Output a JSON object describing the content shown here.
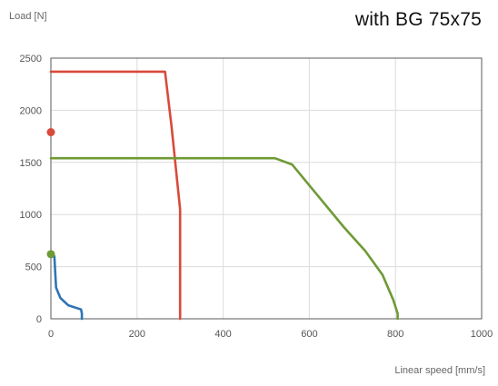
{
  "header": {
    "title": "with BG 75x75"
  },
  "chart_data": {
    "type": "line",
    "title": "with BG 75x75",
    "xlabel": "Linear speed [mm/s]",
    "ylabel": "Load [N]",
    "xlim": [
      0,
      1000
    ],
    "ylim": [
      0,
      2500
    ],
    "x_ticks": [
      0,
      200,
      400,
      600,
      800,
      1000
    ],
    "y_ticks": [
      0,
      500,
      1000,
      1500,
      2000,
      2500
    ],
    "grid": true,
    "series": [
      {
        "color": "#d94a3a",
        "points": [
          [
            0,
            2370
          ],
          [
            265,
            2370
          ],
          [
            280,
            1850
          ],
          [
            300,
            1050
          ],
          [
            300,
            0
          ]
        ],
        "marker": [
          0,
          1790
        ]
      },
      {
        "color": "#6f9a36",
        "points": [
          [
            0,
            1540
          ],
          [
            520,
            1540
          ],
          [
            560,
            1480
          ],
          [
            610,
            1230
          ],
          [
            680,
            880
          ],
          [
            730,
            650
          ],
          [
            770,
            420
          ],
          [
            795,
            180
          ],
          [
            805,
            50
          ],
          [
            805,
            0
          ]
        ],
        "marker": [
          0,
          620
        ]
      },
      {
        "color": "#2f74b5",
        "points": [
          [
            0,
            620
          ],
          [
            8,
            600
          ],
          [
            12,
            300
          ],
          [
            22,
            200
          ],
          [
            40,
            130
          ],
          [
            70,
            90
          ],
          [
            72,
            50
          ],
          [
            72,
            0
          ]
        ],
        "marker": null
      }
    ]
  }
}
